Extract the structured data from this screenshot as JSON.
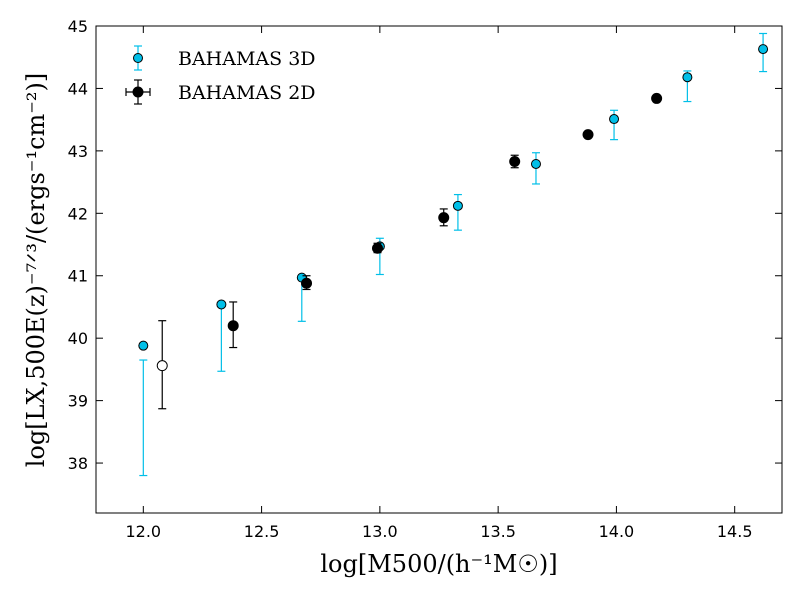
{
  "chart_data": {
    "type": "scatter",
    "xlabel": "log[M500/(h⁻¹M☉)]",
    "ylabel": "log[LX,500E(z)⁻⁷ᐟ³/(ergs⁻¹cm⁻²)]",
    "xlim": [
      11.8,
      14.7
    ],
    "ylim": [
      37.2,
      45
    ],
    "x_ticks": [
      "12.0",
      "12.5",
      "13.0",
      "13.5",
      "14.0",
      "14.5"
    ],
    "y_ticks": [
      "38",
      "39",
      "40",
      "41",
      "42",
      "43",
      "44",
      "45"
    ],
    "grid": false,
    "legend_position": "top-left",
    "series": [
      {
        "name": "BAHAMAS 3D",
        "color": "#00bfe8",
        "marker": "filled-circle",
        "points": [
          {
            "x": 12.0,
            "y": 39.88,
            "ylow": 37.8,
            "yhigh": 39.65
          },
          {
            "x": 12.33,
            "y": 40.54,
            "ylow": 39.47,
            "yhigh": 40.54
          },
          {
            "x": 12.67,
            "y": 40.97,
            "ylow": 40.27,
            "yhigh": 40.97
          },
          {
            "x": 13.0,
            "y": 41.47,
            "ylow": 41.02,
            "yhigh": 41.6
          },
          {
            "x": 13.33,
            "y": 42.12,
            "ylow": 41.73,
            "yhigh": 42.3
          },
          {
            "x": 13.66,
            "y": 42.79,
            "ylow": 42.47,
            "yhigh": 42.97
          },
          {
            "x": 13.99,
            "y": 43.51,
            "ylow": 43.18,
            "yhigh": 43.65
          },
          {
            "x": 14.3,
            "y": 44.18,
            "ylow": 43.79,
            "yhigh": 44.28
          },
          {
            "x": 14.62,
            "y": 44.63,
            "ylow": 44.27,
            "yhigh": 44.88
          }
        ]
      },
      {
        "name": "BAHAMAS 2D",
        "color": "#000000",
        "marker": "filled-circle",
        "points": [
          {
            "x": 12.08,
            "y": 39.56,
            "ylow": 38.87,
            "yhigh": 40.28,
            "open": true
          },
          {
            "x": 12.38,
            "y": 40.2,
            "ylow": 39.85,
            "yhigh": 40.58
          },
          {
            "x": 12.69,
            "y": 40.88,
            "ylow": 40.78,
            "yhigh": 41.0
          },
          {
            "x": 12.99,
            "y": 41.44,
            "ylow": 41.37,
            "yhigh": 41.52
          },
          {
            "x": 13.27,
            "y": 41.93,
            "ylow": 41.8,
            "yhigh": 42.07
          },
          {
            "x": 13.57,
            "y": 42.83,
            "ylow": 42.73,
            "yhigh": 42.93
          },
          {
            "x": 13.88,
            "y": 43.26,
            "ylow": 43.23,
            "yhigh": 43.29
          },
          {
            "x": 14.17,
            "y": 43.84,
            "ylow": 43.82,
            "yhigh": 43.86
          }
        ]
      }
    ]
  }
}
